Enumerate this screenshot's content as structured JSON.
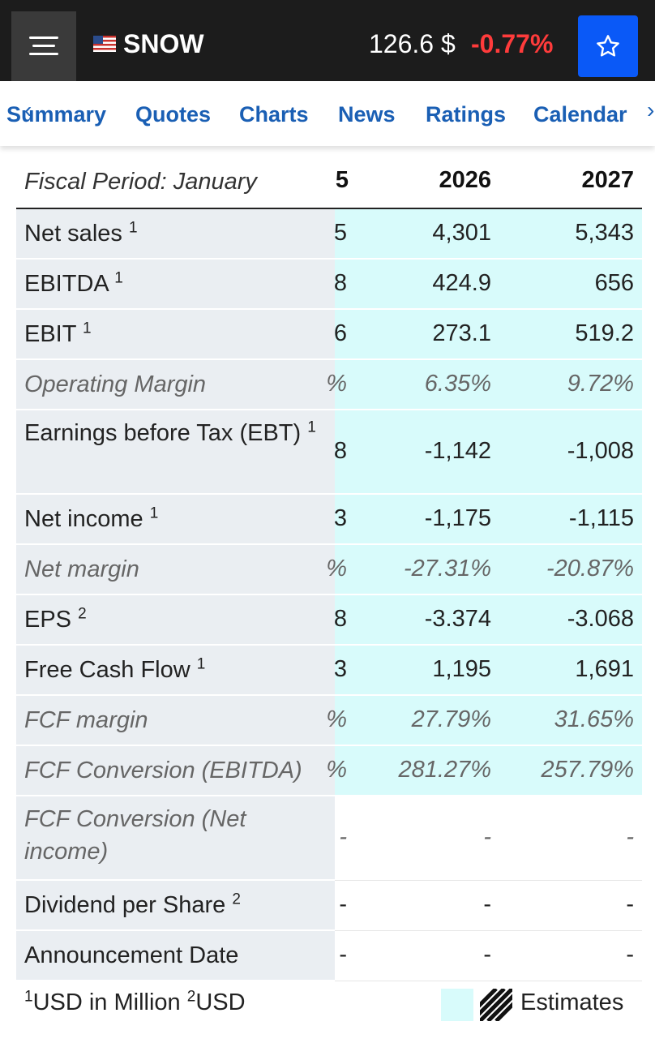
{
  "header": {
    "ticker": "SNOW",
    "price": "126.6 $",
    "change": "-0.77%",
    "change_color": "#ff3b3b",
    "accent": "#0a59f7"
  },
  "tabs": [
    "Summary",
    "Quotes",
    "Charts",
    "News",
    "Ratings",
    "Calendar"
  ],
  "table": {
    "period_label": "Fiscal Period: January",
    "columns": [
      "5",
      "2026",
      "2027"
    ],
    "rows": [
      {
        "label": "Net sales",
        "note": "1",
        "values": [
          "5",
          "4,301",
          "5,343"
        ],
        "estimate": true,
        "italic": false
      },
      {
        "label": "EBITDA",
        "note": "1",
        "values": [
          "8",
          "424.9",
          "656"
        ],
        "estimate": true,
        "italic": false
      },
      {
        "label": "EBIT",
        "note": "1",
        "values": [
          "6",
          "273.1",
          "519.2"
        ],
        "estimate": true,
        "italic": false
      },
      {
        "label": "Operating Margin",
        "note": "",
        "values": [
          "%",
          "6.35%",
          "9.72%"
        ],
        "estimate": true,
        "italic": true
      },
      {
        "label": "Earnings before Tax (EBT)",
        "note": "1",
        "values": [
          "8",
          "-1,142",
          "-1,008"
        ],
        "estimate": true,
        "italic": false
      },
      {
        "label": "Net income",
        "note": "1",
        "values": [
          "3",
          "-1,175",
          "-1,115"
        ],
        "estimate": true,
        "italic": false
      },
      {
        "label": "Net margin",
        "note": "",
        "values": [
          "%",
          "-27.31%",
          "-20.87%"
        ],
        "estimate": true,
        "italic": true
      },
      {
        "label": "EPS",
        "note": "2",
        "values": [
          "8",
          "-3.374",
          "-3.068"
        ],
        "estimate": true,
        "italic": false
      },
      {
        "label": "Free Cash Flow",
        "note": "1",
        "values": [
          "3",
          "1,195",
          "1,691"
        ],
        "estimate": true,
        "italic": false
      },
      {
        "label": "FCF margin",
        "note": "",
        "values": [
          "%",
          "27.79%",
          "31.65%"
        ],
        "estimate": true,
        "italic": true
      },
      {
        "label": "FCF Conversion (EBITDA)",
        "note": "",
        "values": [
          "%",
          "281.27%",
          "257.79%"
        ],
        "estimate": true,
        "italic": true
      },
      {
        "label": "FCF Conversion (Net income)",
        "note": "",
        "values": [
          "-",
          "-",
          "-"
        ],
        "estimate": false,
        "italic": true
      },
      {
        "label": "Dividend per Share",
        "note": "2",
        "values": [
          "-",
          "-",
          "-"
        ],
        "estimate": false,
        "italic": false
      },
      {
        "label": "Announcement Date",
        "note": "",
        "values": [
          "-",
          "-",
          "-"
        ],
        "estimate": false,
        "italic": false
      }
    ]
  },
  "footer": {
    "note1": "USD in Million",
    "note2": "USD",
    "note1_mark": "1",
    "note2_mark": "2",
    "legend_label": "Estimates"
  }
}
